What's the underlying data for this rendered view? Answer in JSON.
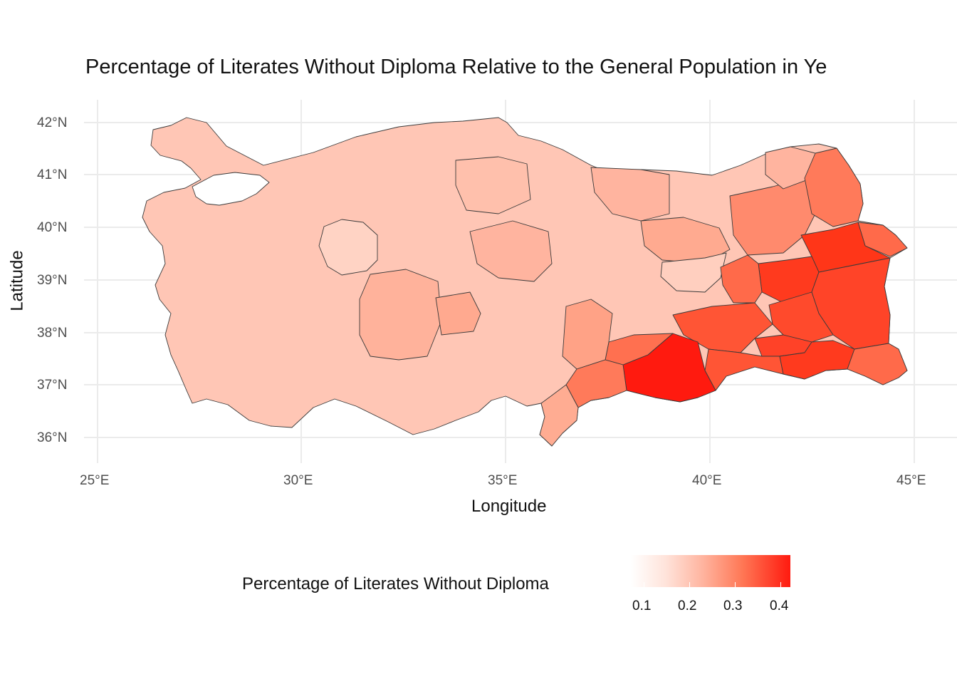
{
  "title": "Percentage of Literates Without Diploma Relative to the General Population in Ye",
  "axes": {
    "x_label": "Longitude",
    "y_label": "Latitude",
    "x_ticks": [
      "25°E",
      "30°E",
      "35°E",
      "40°E",
      "45°E"
    ],
    "y_ticks": [
      "42°N",
      "41°N",
      "40°N",
      "39°N",
      "38°N",
      "37°N",
      "36°N"
    ]
  },
  "legend": {
    "title": "Percentage of Literates Without Diploma",
    "ticks": [
      "0.1",
      "0.2",
      "0.3",
      "0.4"
    ],
    "low_color": "#ffffff",
    "high_color": "#ff1a0f"
  },
  "chart_data": {
    "type": "choropleth",
    "region": "Turkey provinces",
    "xlim": [
      24.8,
      45.9
    ],
    "ylim": [
      35.6,
      42.4
    ],
    "value_range": [
      0.07,
      0.42
    ],
    "grid": true,
    "legend_position": "bottom",
    "highlighted_regions_note_values": [
      {
        "region": "southeast (around 39E, 37.3N)",
        "value": 0.42
      },
      {
        "region": "east (around 42.5E, 39.2N)",
        "value": 0.38
      },
      {
        "region": "far east (around 43.5E, 38.5N)",
        "value": 0.36
      },
      {
        "region": "east-central (around 39.5E, 38.9N)",
        "value": 0.12
      },
      {
        "region": "central (around 31.5E, 39.7N)",
        "value": 0.13
      }
    ]
  }
}
